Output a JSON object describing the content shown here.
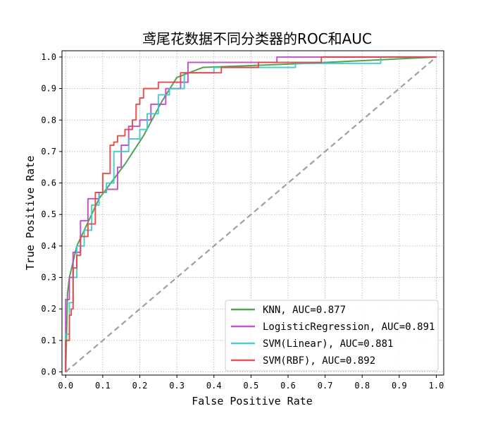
{
  "chart_data": {
    "type": "line",
    "title": "鸢尾花数据不同分类器的ROC和AUC",
    "xlabel": "False Positive Rate",
    "ylabel": "True Positive Rate",
    "xlim": [
      -0.01,
      1.02
    ],
    "ylim": [
      -0.01,
      1.02
    ],
    "grid": true,
    "legend_position": "lower-right",
    "x_ticks": [
      0.0,
      0.1,
      0.2,
      0.3,
      0.4,
      0.5,
      0.6,
      0.7,
      0.8,
      0.9,
      1.0
    ],
    "y_ticks": [
      0.0,
      0.1,
      0.2,
      0.3,
      0.4,
      0.5,
      0.6,
      0.7,
      0.8,
      0.9,
      1.0
    ],
    "x_tick_labels": [
      "0.0",
      "0.1",
      "0.2",
      "0.3",
      "0.4",
      "0.5",
      "0.6",
      "0.7",
      "0.8",
      "0.9",
      "1.0"
    ],
    "y_tick_labels": [
      "0.0",
      "0.1",
      "0.2",
      "0.3",
      "0.4",
      "0.5",
      "0.6",
      "0.7",
      "0.8",
      "0.9",
      "1.0"
    ],
    "diagonal": {
      "color": "#a0a0a0",
      "style": "dashed",
      "points": [
        [
          0,
          0
        ],
        [
          1,
          1
        ]
      ]
    },
    "series": [
      {
        "name": "KNN, AUC=0.877",
        "color": "#3d9a3d",
        "points": [
          [
            0,
            0
          ],
          [
            0.005,
            0.25
          ],
          [
            0.01,
            0.3
          ],
          [
            0.03,
            0.4
          ],
          [
            0.09,
            0.55
          ],
          [
            0.16,
            0.66
          ],
          [
            0.21,
            0.75
          ],
          [
            0.26,
            0.86
          ],
          [
            0.3,
            0.935
          ],
          [
            0.37,
            0.967
          ],
          [
            0.65,
            0.98
          ],
          [
            1,
            1
          ]
        ]
      },
      {
        "name": "LogisticRegression, AUC=0.891",
        "color": "#c040c8",
        "points": [
          [
            0,
            0
          ],
          [
            0,
            0.23
          ],
          [
            0.01,
            0.23
          ],
          [
            0.01,
            0.3
          ],
          [
            0.02,
            0.3
          ],
          [
            0.02,
            0.38
          ],
          [
            0.04,
            0.38
          ],
          [
            0.04,
            0.48
          ],
          [
            0.06,
            0.48
          ],
          [
            0.06,
            0.55
          ],
          [
            0.09,
            0.55
          ],
          [
            0.09,
            0.57
          ],
          [
            0.11,
            0.57
          ],
          [
            0.11,
            0.58
          ],
          [
            0.14,
            0.58
          ],
          [
            0.14,
            0.65
          ],
          [
            0.15,
            0.65
          ],
          [
            0.15,
            0.72
          ],
          [
            0.17,
            0.72
          ],
          [
            0.17,
            0.78
          ],
          [
            0.2,
            0.78
          ],
          [
            0.2,
            0.8
          ],
          [
            0.23,
            0.8
          ],
          [
            0.23,
            0.85
          ],
          [
            0.27,
            0.85
          ],
          [
            0.27,
            0.9
          ],
          [
            0.31,
            0.9
          ],
          [
            0.31,
            0.92
          ],
          [
            0.33,
            0.92
          ],
          [
            0.33,
            0.983
          ],
          [
            0.57,
            0.983
          ],
          [
            0.57,
            1.0
          ],
          [
            1,
            1
          ]
        ]
      },
      {
        "name": "SVM(Linear), AUC=0.881",
        "color": "#3cc8c8",
        "points": [
          [
            0,
            0
          ],
          [
            0,
            0.12
          ],
          [
            0.01,
            0.12
          ],
          [
            0.01,
            0.22
          ],
          [
            0.02,
            0.22
          ],
          [
            0.02,
            0.3
          ],
          [
            0.03,
            0.3
          ],
          [
            0.03,
            0.4
          ],
          [
            0.05,
            0.4
          ],
          [
            0.05,
            0.45
          ],
          [
            0.07,
            0.45
          ],
          [
            0.07,
            0.53
          ],
          [
            0.09,
            0.53
          ],
          [
            0.09,
            0.57
          ],
          [
            0.11,
            0.57
          ],
          [
            0.11,
            0.6
          ],
          [
            0.13,
            0.6
          ],
          [
            0.13,
            0.7
          ],
          [
            0.17,
            0.7
          ],
          [
            0.17,
            0.74
          ],
          [
            0.2,
            0.74
          ],
          [
            0.2,
            0.77
          ],
          [
            0.22,
            0.77
          ],
          [
            0.22,
            0.82
          ],
          [
            0.25,
            0.82
          ],
          [
            0.25,
            0.88
          ],
          [
            0.28,
            0.88
          ],
          [
            0.28,
            0.9
          ],
          [
            0.32,
            0.9
          ],
          [
            0.32,
            0.95
          ],
          [
            0.4,
            0.95
          ],
          [
            0.4,
            0.967
          ],
          [
            0.62,
            0.967
          ],
          [
            0.62,
            0.98
          ],
          [
            0.85,
            0.98
          ],
          [
            0.85,
            1.0
          ],
          [
            1,
            1
          ]
        ]
      },
      {
        "name": "SVM(RBF), AUC=0.892",
        "color": "#e84040",
        "points": [
          [
            0,
            0
          ],
          [
            0,
            0.1
          ],
          [
            0.01,
            0.1
          ],
          [
            0.01,
            0.18
          ],
          [
            0.015,
            0.18
          ],
          [
            0.015,
            0.2
          ],
          [
            0.02,
            0.2
          ],
          [
            0.02,
            0.33
          ],
          [
            0.03,
            0.33
          ],
          [
            0.03,
            0.37
          ],
          [
            0.04,
            0.37
          ],
          [
            0.04,
            0.43
          ],
          [
            0.06,
            0.43
          ],
          [
            0.06,
            0.47
          ],
          [
            0.08,
            0.47
          ],
          [
            0.08,
            0.57
          ],
          [
            0.1,
            0.57
          ],
          [
            0.1,
            0.63
          ],
          [
            0.12,
            0.63
          ],
          [
            0.12,
            0.72
          ],
          [
            0.13,
            0.72
          ],
          [
            0.13,
            0.73
          ],
          [
            0.14,
            0.73
          ],
          [
            0.14,
            0.75
          ],
          [
            0.16,
            0.75
          ],
          [
            0.16,
            0.77
          ],
          [
            0.18,
            0.77
          ],
          [
            0.18,
            0.8
          ],
          [
            0.19,
            0.8
          ],
          [
            0.19,
            0.85
          ],
          [
            0.2,
            0.85
          ],
          [
            0.2,
            0.87
          ],
          [
            0.21,
            0.87
          ],
          [
            0.21,
            0.9
          ],
          [
            0.25,
            0.9
          ],
          [
            0.25,
            0.92
          ],
          [
            0.31,
            0.92
          ],
          [
            0.31,
            0.95
          ],
          [
            0.42,
            0.95
          ],
          [
            0.42,
            0.967
          ],
          [
            0.52,
            0.967
          ],
          [
            0.52,
            0.983
          ],
          [
            0.69,
            0.983
          ],
          [
            0.69,
            1.0
          ],
          [
            1,
            1
          ]
        ]
      }
    ]
  }
}
